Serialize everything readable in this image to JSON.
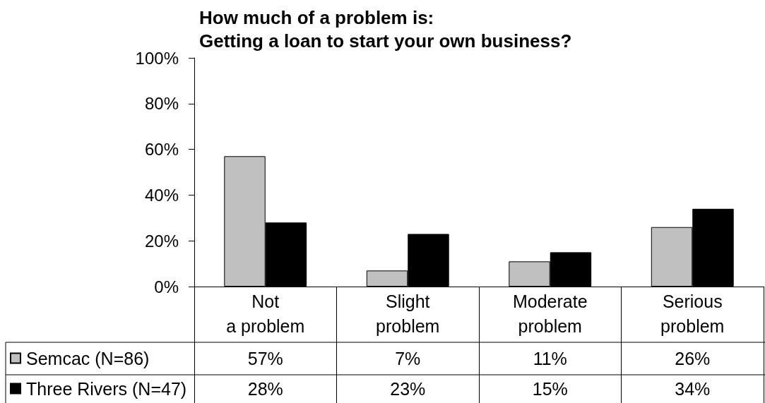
{
  "chart_data": {
    "type": "bar",
    "title": "How much of a problem is:\nGetting a loan to start your own business?",
    "categories": [
      "Not\na problem",
      "Slight\nproblem",
      "Moderate\nproblem",
      "Serious\nproblem"
    ],
    "series": [
      {
        "name": "Semcac (N=86)",
        "color": "#c0c0c0",
        "values": [
          57,
          7,
          11,
          26
        ],
        "value_labels": [
          "57%",
          "7%",
          "11%",
          "26%"
        ]
      },
      {
        "name": "Three Rivers (N=47)",
        "color": "#000000",
        "values": [
          28,
          23,
          15,
          34
        ],
        "value_labels": [
          "28%",
          "23%",
          "15%",
          "34%"
        ]
      }
    ],
    "ylim": [
      0,
      100
    ],
    "yticks": [
      {
        "value": 0,
        "label": "0%"
      },
      {
        "value": 20,
        "label": "20%"
      },
      {
        "value": 40,
        "label": "40%"
      },
      {
        "value": 60,
        "label": "60%"
      },
      {
        "value": 80,
        "label": "80%"
      },
      {
        "value": 100,
        "label": "100%"
      }
    ],
    "grid": false,
    "legend": "bottom left"
  }
}
